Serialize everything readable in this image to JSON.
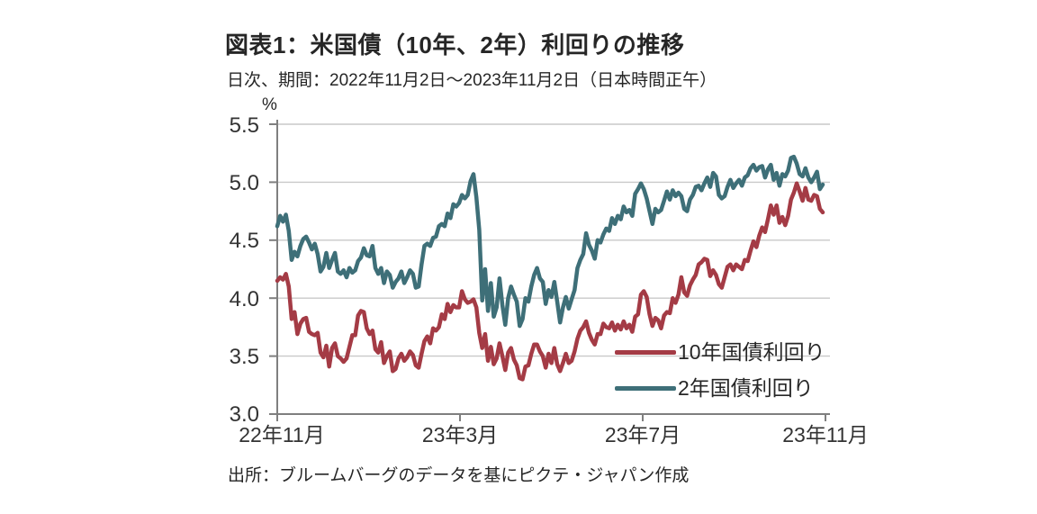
{
  "header": {
    "title": "図表1：米国債（10年、2年）利回りの推移",
    "subtitle": "日次、期間：2022年11月2日～2023年11月2日（日本時間正午）"
  },
  "source": "出所：ブルームバーグのデータを基にピクテ・ジャパン作成",
  "colors": {
    "series_10y": "#a43b45",
    "series_2y": "#3e6f78",
    "gridline": "#c9c9c9",
    "axis": "#7f7f7f"
  },
  "chart_data": {
    "type": "line",
    "title": "図表1：米国債（10年、2年）利回りの推移",
    "subtitle": "日次、期間：2022年11月2日～2023年11月2日（日本時間正午）",
    "y_axis_unit": "%",
    "ylim": [
      3.0,
      5.5
    ],
    "y_ticks": [
      5.5,
      5.0,
      4.5,
      4.0,
      3.5,
      3.0
    ],
    "y_tick_labels": [
      "5.5",
      "5.0",
      "4.5",
      "4.0",
      "3.5",
      "3.0"
    ],
    "x_tick_labels": [
      "22年11月",
      "23年3月",
      "23年7月",
      "23年11月"
    ],
    "grid": true,
    "legend_position": "inside-lower-right",
    "series": [
      {
        "name": "10年国債利回り",
        "color": "#a43b45",
        "values": [
          4.15,
          4.18,
          4.16,
          4.21,
          4.1,
          3.82,
          3.88,
          3.69,
          3.78,
          3.82,
          3.83,
          3.71,
          3.69,
          3.68,
          3.7,
          3.53,
          3.49,
          3.59,
          3.41,
          3.57,
          3.61,
          3.5,
          3.48,
          3.45,
          3.48,
          3.58,
          3.68,
          3.68,
          3.85,
          3.89,
          3.88,
          3.74,
          3.69,
          3.72,
          3.56,
          3.53,
          3.62,
          3.44,
          3.5,
          3.54,
          3.37,
          3.39,
          3.48,
          3.52,
          3.46,
          3.49,
          3.54,
          3.51,
          3.42,
          3.4,
          3.52,
          3.63,
          3.67,
          3.61,
          3.74,
          3.72,
          3.75,
          3.86,
          3.82,
          3.95,
          3.88,
          3.94,
          3.92,
          3.92,
          4.06,
          3.99,
          3.96,
          3.97,
          3.99,
          3.92,
          3.7,
          3.57,
          3.69,
          3.46,
          3.58,
          3.43,
          3.48,
          3.61,
          3.5,
          3.38,
          3.53,
          3.57,
          3.47,
          3.42,
          3.31,
          3.3,
          3.41,
          3.42,
          3.52,
          3.6,
          3.6,
          3.54,
          3.5,
          3.4,
          3.52,
          3.44,
          3.57,
          3.43,
          3.37,
          3.44,
          3.52,
          3.44,
          3.46,
          3.54,
          3.65,
          3.72,
          3.75,
          3.8,
          3.7,
          3.64,
          3.6,
          3.69,
          3.69,
          3.78,
          3.75,
          3.74,
          3.79,
          3.72,
          3.77,
          3.73,
          3.8,
          3.74,
          3.77,
          3.71,
          3.84,
          3.86,
          4.03,
          4.06,
          4.01,
          3.86,
          3.76,
          3.83,
          3.81,
          3.74,
          3.85,
          3.88,
          3.87,
          4.0,
          3.96,
          4.03,
          4.18,
          4.05,
          4.02,
          4.11,
          4.16,
          4.2,
          4.29,
          4.31,
          4.34,
          4.33,
          4.19,
          4.24,
          4.2,
          4.12,
          4.09,
          4.18,
          4.27,
          4.29,
          4.24,
          4.29,
          4.27,
          4.25,
          4.33,
          4.32,
          4.41,
          4.49,
          4.44,
          4.54,
          4.61,
          4.57,
          4.68,
          4.8,
          4.72,
          4.8,
          4.65,
          4.7,
          4.63,
          4.71,
          4.85,
          4.91,
          4.99,
          4.92,
          4.84,
          4.95,
          4.85,
          4.84,
          4.89,
          4.88,
          4.77,
          4.74
        ]
      },
      {
        "name": "2年国債利回り",
        "color": "#3e6f78",
        "values": [
          4.62,
          4.71,
          4.66,
          4.72,
          4.58,
          4.33,
          4.4,
          4.36,
          4.45,
          4.51,
          4.53,
          4.48,
          4.42,
          4.47,
          4.38,
          4.23,
          4.27,
          4.39,
          4.26,
          4.33,
          4.39,
          4.23,
          4.21,
          4.24,
          4.18,
          4.26,
          4.22,
          4.24,
          4.32,
          4.35,
          4.43,
          4.37,
          4.36,
          4.45,
          4.26,
          4.21,
          4.26,
          4.13,
          4.23,
          4.2,
          4.09,
          4.14,
          4.17,
          4.23,
          4.13,
          4.18,
          4.24,
          4.21,
          4.09,
          4.1,
          4.29,
          4.45,
          4.47,
          4.45,
          4.52,
          4.53,
          4.62,
          4.64,
          4.62,
          4.73,
          4.69,
          4.81,
          4.79,
          4.82,
          4.89,
          4.86,
          4.89,
          5.01,
          5.07,
          4.87,
          4.59,
          3.98,
          4.25,
          3.89,
          4.13,
          3.84,
          3.92,
          4.17,
          3.94,
          3.77,
          4.0,
          4.1,
          4.03,
          3.97,
          3.76,
          3.82,
          4.0,
          3.97,
          4.1,
          4.2,
          4.26,
          4.17,
          4.14,
          3.95,
          4.07,
          4.01,
          4.14,
          3.97,
          3.79,
          3.92,
          4.01,
          3.91,
          3.99,
          4.07,
          4.26,
          4.33,
          4.38,
          4.56,
          4.46,
          4.41,
          4.34,
          4.5,
          4.48,
          4.55,
          4.6,
          4.58,
          4.69,
          4.64,
          4.71,
          4.68,
          4.79,
          4.74,
          4.76,
          4.71,
          4.9,
          4.94,
          4.99,
          4.94,
          4.86,
          4.75,
          4.64,
          4.77,
          4.74,
          4.76,
          4.84,
          4.92,
          4.85,
          4.93,
          4.88,
          4.91,
          4.88,
          4.77,
          4.75,
          4.85,
          4.89,
          4.96,
          4.97,
          4.93,
          4.99,
          5.04,
          4.96,
          5.08,
          5.05,
          4.89,
          4.86,
          4.88,
          4.96,
          5.02,
          4.95,
          4.99,
          5.02,
          4.97,
          5.04,
          5.06,
          5.12,
          5.15,
          5.1,
          5.13,
          5.14,
          5.04,
          5.11,
          5.15,
          5.02,
          5.08,
          4.97,
          5.07,
          5.05,
          5.1,
          5.21,
          5.22,
          5.16,
          5.07,
          5.05,
          5.12,
          5.04,
          5.0,
          5.04,
          5.09,
          4.94,
          4.98
        ]
      }
    ]
  }
}
